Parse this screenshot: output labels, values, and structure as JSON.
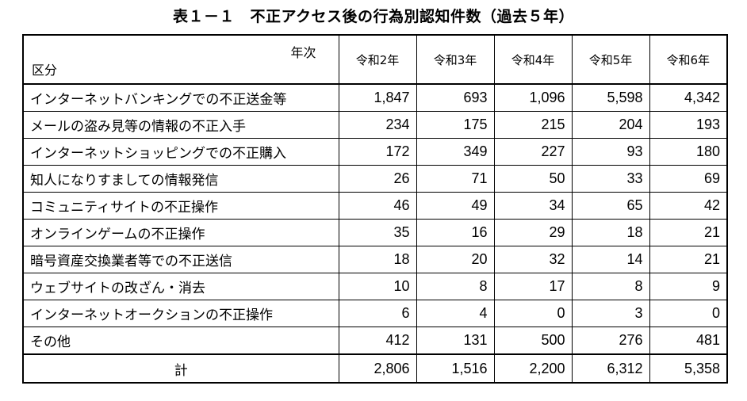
{
  "title": "表１－１　不正アクセス後の行為別認知件数（過去５年）",
  "header": {
    "column_axis_label": "年次",
    "row_axis_label": "区分",
    "years": [
      "令和2年",
      "令和3年",
      "令和4年",
      "令和5年",
      "令和6年"
    ]
  },
  "rows": [
    {
      "label": "インターネットバンキングでの不正送金等",
      "values": [
        "1,847",
        "693",
        "1,096",
        "5,598",
        "4,342"
      ]
    },
    {
      "label": "メールの盗み見等の情報の不正入手",
      "values": [
        "234",
        "175",
        "215",
        "204",
        "193"
      ]
    },
    {
      "label": "インターネットショッピングでの不正購入",
      "values": [
        "172",
        "349",
        "227",
        "93",
        "180"
      ]
    },
    {
      "label": "知人になりすましての情報発信",
      "values": [
        "26",
        "71",
        "50",
        "33",
        "69"
      ]
    },
    {
      "label": "コミュニティサイトの不正操作",
      "values": [
        "46",
        "49",
        "34",
        "65",
        "42"
      ]
    },
    {
      "label": "オンラインゲームの不正操作",
      "values": [
        "35",
        "16",
        "29",
        "18",
        "21"
      ]
    },
    {
      "label": "暗号資産交換業者等での不正送信",
      "values": [
        "18",
        "20",
        "32",
        "14",
        "21"
      ]
    },
    {
      "label": "ウェブサイトの改ざん・消去",
      "values": [
        "10",
        "8",
        "17",
        "8",
        "9"
      ]
    },
    {
      "label": "インターネットオークションの不正操作",
      "values": [
        "6",
        "4",
        "0",
        "3",
        "0"
      ]
    },
    {
      "label": "その他",
      "values": [
        "412",
        "131",
        "500",
        "276",
        "481"
      ]
    }
  ],
  "total": {
    "label": "計",
    "values": [
      "2,806",
      "1,516",
      "2,200",
      "6,312",
      "5,358"
    ]
  }
}
